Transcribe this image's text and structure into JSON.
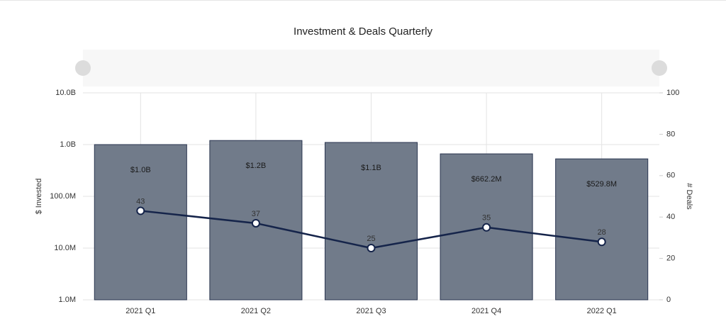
{
  "chart_data": {
    "type": "bar",
    "title": "Investment & Deals Quarterly",
    "y_label": "$ Invested",
    "y2_label": "# Deals",
    "categories": [
      "2021 Q1",
      "2021 Q2",
      "2021 Q3",
      "2021 Q4",
      "2022 Q1"
    ],
    "ylog": true,
    "ylim": [
      1000000,
      10000000000
    ],
    "yticks": [
      {
        "value": 1000000,
        "label": "1.0M"
      },
      {
        "value": 10000000,
        "label": "10.0M"
      },
      {
        "value": 100000000,
        "label": "100.0M"
      },
      {
        "value": 1000000000,
        "label": "1.0B"
      },
      {
        "value": 10000000000,
        "label": "10.0B"
      }
    ],
    "y2lim": [
      0,
      100
    ],
    "y2ticks": [
      0,
      20,
      40,
      60,
      80,
      100
    ],
    "grid": true,
    "series": [
      {
        "type": "bar",
        "color": "#717b8a",
        "values": [
          1000000000,
          1200000000,
          1100000000,
          662200000,
          529800000
        ],
        "value_labels": [
          "$1.0B",
          "$1.2B",
          "$1.1B",
          "$662.2M",
          "$529.8M"
        ]
      },
      {
        "type": "line",
        "axis": "y2",
        "color": "#15244a",
        "values": [
          43,
          37,
          25,
          35,
          28
        ]
      }
    ]
  }
}
